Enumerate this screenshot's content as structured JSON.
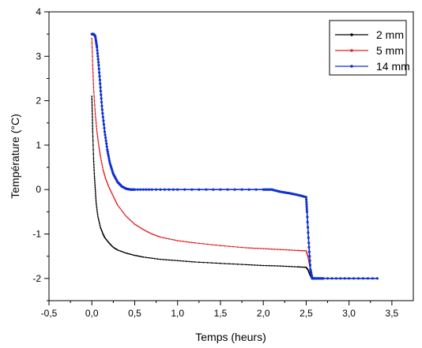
{
  "chart_data": {
    "type": "line",
    "xlabel": "Temps (heurs)",
    "ylabel": "Température (°C)",
    "xlim": [
      -0.5,
      3.75
    ],
    "ylim": [
      -2.5,
      4
    ],
    "x_ticks": [
      -0.5,
      0.0,
      0.5,
      1.0,
      1.5,
      2.0,
      2.5,
      3.0,
      3.5
    ],
    "x_tick_labels": [
      "-0,5",
      "0,0",
      "0,5",
      "1,0",
      "1,5",
      "2,0",
      "2,5",
      "3,0",
      "3,5"
    ],
    "y_ticks": [
      -2,
      -1,
      0,
      1,
      2,
      3,
      4
    ],
    "y_tick_labels": [
      "-2",
      "-1",
      "0",
      "1",
      "2",
      "3",
      "4"
    ],
    "grid": false,
    "legend_position": "top-right",
    "series": [
      {
        "name": "2 mm",
        "color": "#000000",
        "x": [
          0.0,
          0.005,
          0.01,
          0.02,
          0.03,
          0.04,
          0.05,
          0.07,
          0.1,
          0.13,
          0.15,
          0.2,
          0.25,
          0.3,
          0.4,
          0.5,
          0.6,
          0.8,
          1.0,
          1.2,
          1.5,
          1.8,
          2.0,
          2.2,
          2.4,
          2.5,
          2.52,
          2.54,
          2.56,
          2.58,
          2.6,
          2.65,
          2.7,
          3.0,
          3.33
        ],
        "y": [
          2.1,
          1.7,
          1.3,
          0.7,
          0.3,
          0.0,
          -0.3,
          -0.6,
          -0.85,
          -1.0,
          -1.08,
          -1.2,
          -1.3,
          -1.36,
          -1.43,
          -1.48,
          -1.52,
          -1.57,
          -1.6,
          -1.63,
          -1.66,
          -1.69,
          -1.71,
          -1.72,
          -1.74,
          -1.75,
          -1.8,
          -1.9,
          -1.98,
          -2.0,
          -2.0,
          -2.0,
          -2.0,
          -2.0,
          -2.0
        ]
      },
      {
        "name": "5 mm",
        "color": "#e02020",
        "x": [
          0.0,
          0.01,
          0.02,
          0.04,
          0.06,
          0.08,
          0.1,
          0.13,
          0.16,
          0.2,
          0.25,
          0.3,
          0.4,
          0.5,
          0.6,
          0.7,
          0.8,
          1.0,
          1.2,
          1.5,
          1.8,
          2.0,
          2.2,
          2.4,
          2.5,
          2.52,
          2.54,
          2.56,
          2.58,
          2.6,
          2.65,
          2.7,
          3.0,
          3.33
        ],
        "y": [
          3.4,
          2.8,
          2.3,
          1.7,
          1.3,
          1.0,
          0.75,
          0.45,
          0.25,
          0.05,
          -0.15,
          -0.35,
          -0.6,
          -0.78,
          -0.9,
          -1.0,
          -1.07,
          -1.15,
          -1.2,
          -1.26,
          -1.31,
          -1.33,
          -1.35,
          -1.37,
          -1.38,
          -1.5,
          -1.7,
          -1.9,
          -2.0,
          -2.0,
          -2.0,
          -2.0,
          -2.0,
          -2.0
        ]
      },
      {
        "name": "14 mm",
        "color": "#1030d0",
        "x": [
          0.0,
          0.02,
          0.04,
          0.06,
          0.08,
          0.1,
          0.12,
          0.15,
          0.18,
          0.21,
          0.25,
          0.3,
          0.35,
          0.4,
          0.45,
          0.5,
          0.7,
          1.0,
          1.5,
          2.0,
          2.1,
          2.2,
          2.3,
          2.4,
          2.5,
          2.51,
          2.53,
          2.55,
          2.57,
          2.6,
          2.65,
          2.7,
          3.0,
          3.33
        ],
        "y": [
          3.5,
          3.5,
          3.45,
          3.2,
          2.8,
          2.3,
          1.8,
          1.3,
          0.9,
          0.6,
          0.35,
          0.17,
          0.07,
          0.02,
          0.0,
          0.0,
          0.0,
          0.0,
          0.0,
          0.0,
          0.0,
          -0.05,
          -0.08,
          -0.12,
          -0.17,
          -0.5,
          -1.2,
          -1.8,
          -2.0,
          -2.0,
          -2.0,
          -2.0,
          -2.0,
          -2.0
        ]
      }
    ]
  }
}
